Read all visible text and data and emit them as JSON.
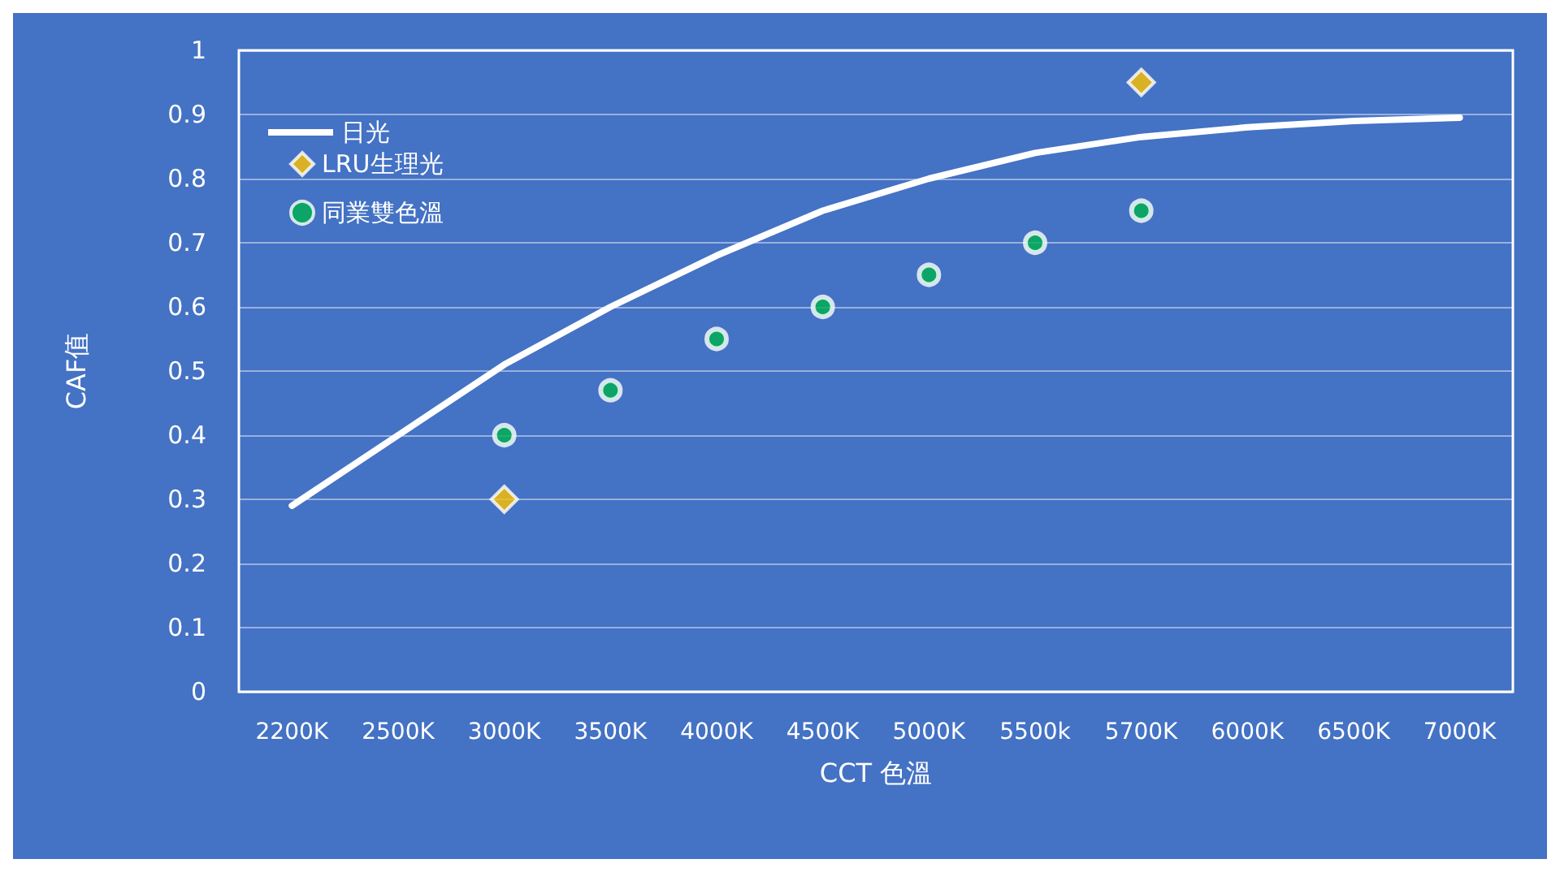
{
  "chart_data": {
    "type": "line",
    "xlabel": "CCT 色溫",
    "ylabel": "CAF值",
    "categories": [
      "2200K",
      "2500K",
      "3000K",
      "3500K",
      "4000K",
      "4500K",
      "5000K",
      "5500k",
      "5700K",
      "6000K",
      "6500K",
      "7000K"
    ],
    "series": [
      {
        "name": "日光",
        "color": "#ffffff",
        "marker": "none",
        "values": [
          0.29,
          0.4,
          0.51,
          0.6,
          0.68,
          0.75,
          0.8,
          0.84,
          0.865,
          0.88,
          0.89,
          0.895
        ]
      },
      {
        "name": "LRU生理光",
        "type": "scatter",
        "color": "#ffc000",
        "marker": "diamond",
        "values": [
          null,
          null,
          0.3,
          null,
          null,
          null,
          null,
          null,
          0.95,
          null,
          null,
          null
        ]
      },
      {
        "name": "同業雙色溫",
        "type": "scatter",
        "color": "#00b050",
        "marker": "circle",
        "values": [
          null,
          null,
          0.4,
          0.47,
          0.55,
          0.6,
          0.65,
          0.7,
          0.75,
          null,
          null,
          null
        ]
      }
    ],
    "ylim": [
      0,
      1
    ],
    "yticks": [
      0,
      0.1,
      0.2,
      0.3,
      0.4,
      0.5,
      0.6,
      0.7,
      0.8,
      0.9,
      1
    ],
    "grid": "y",
    "legend": "top left"
  }
}
